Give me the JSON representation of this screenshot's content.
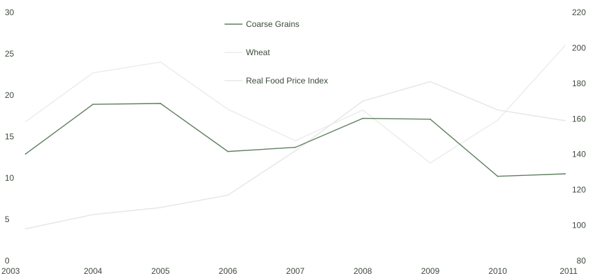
{
  "chart_data": {
    "type": "line",
    "categories": [
      "2003",
      "2004",
      "2005",
      "2006",
      "2007",
      "2008",
      "2009",
      "2010",
      "2011"
    ],
    "series": [
      {
        "name": "Coarse Grains",
        "axis": "left",
        "color": "#5e7d5e",
        "values": [
          12.9,
          18.9,
          19.0,
          13.2,
          13.7,
          17.2,
          17.1,
          10.2,
          10.5
        ]
      },
      {
        "name": "Wheat",
        "axis": "left",
        "color": "#eceeed",
        "values": [
          16.8,
          22.7,
          24.0,
          18.3,
          14.5,
          18.2,
          11.8,
          17.0,
          26.0
        ]
      },
      {
        "name": "Real Food Price Index",
        "axis": "right",
        "color": "#e6e9e6",
        "values": [
          98,
          106,
          110,
          117,
          142,
          170,
          181,
          165,
          159
        ]
      }
    ],
    "left_axis": {
      "ylim": [
        0,
        30
      ],
      "ticks": [
        "0",
        "5",
        "10",
        "15",
        "20",
        "25",
        "30"
      ]
    },
    "right_axis": {
      "ylim": [
        80,
        220
      ],
      "ticks": [
        "80",
        "100",
        "120",
        "140",
        "160",
        "180",
        "200",
        "220"
      ]
    },
    "title": "",
    "xlabel": "",
    "ylabel": "",
    "legend_position": "top-center",
    "grid": false
  }
}
